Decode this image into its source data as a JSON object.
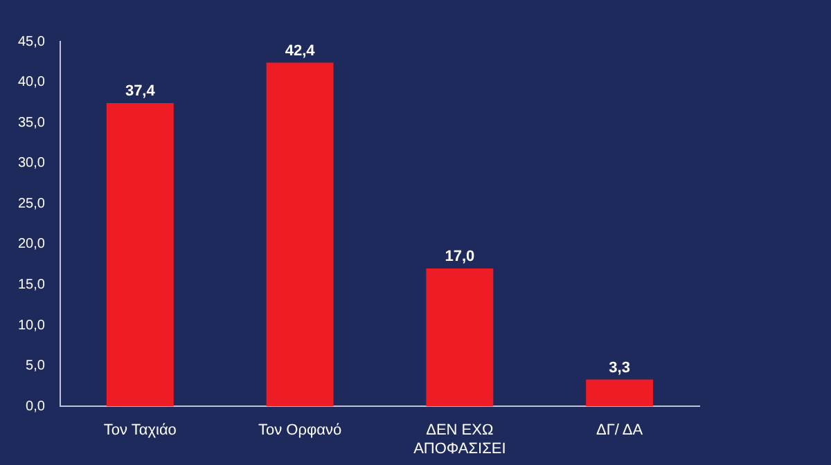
{
  "chart_data": {
    "type": "bar",
    "categories": [
      "Τον Ταχιάο",
      "Τον Ορφανό",
      "ΔΕΝ ΕΧΩ ΑΠΟΦΑΣΙΣΕΙ",
      "ΔΓ/ ΔΑ"
    ],
    "values": [
      37.4,
      42.4,
      17.0,
      3.3
    ],
    "color": "#ee1c25",
    "value_labels": [
      "37,4",
      "42,4",
      "17,0",
      "3,3"
    ],
    "ylim": [
      0,
      45
    ],
    "yticks": [
      {
        "value": 0,
        "label": "0,0"
      },
      {
        "value": 5,
        "label": "5,0"
      },
      {
        "value": 10,
        "label": "10,0"
      },
      {
        "value": 15,
        "label": "15,0"
      },
      {
        "value": 20,
        "label": "20,0"
      },
      {
        "value": 25,
        "label": "25,0"
      },
      {
        "value": 30,
        "label": "30,0"
      },
      {
        "value": 35,
        "label": "35,0"
      },
      {
        "value": 40,
        "label": "40,0"
      },
      {
        "value": 45,
        "label": "45,0"
      }
    ],
    "grid": false,
    "legend": false
  }
}
